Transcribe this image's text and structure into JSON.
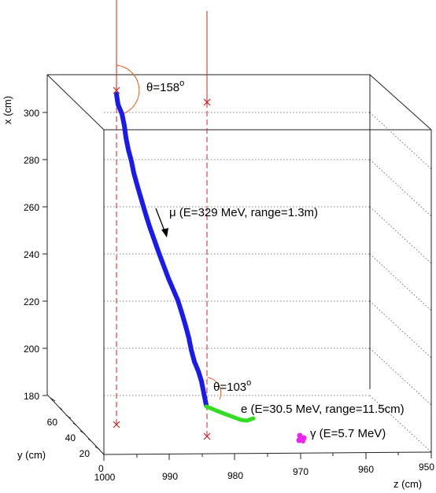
{
  "chart_data": {
    "type": "scatter",
    "axes": {
      "x": {
        "label": "x (cm)",
        "ticks": [
          "180",
          "200",
          "220",
          "240",
          "260",
          "280",
          "300"
        ]
      },
      "y": {
        "label": "y (cm)",
        "ticks": [
          "20",
          "40",
          "60"
        ]
      },
      "z": {
        "label": "z (cm)",
        "ticks": [
          "1000",
          "990",
          "980",
          "970",
          "960",
          "950"
        ]
      },
      "origin_label": "0"
    },
    "annotations": {
      "muon": "μ (E=329 MeV, range=1.3m)",
      "electron": "e (E=30.5 MeV, range=11.5cm)",
      "gamma": "γ (E=5.7 MeV)",
      "angle1_base": "θ=158",
      "angle1_sup": "o",
      "angle2_base": "θ=103",
      "angle2_sup": "o"
    },
    "series": [
      {
        "color": "#1a1aee"
      },
      {
        "color": "#33dd22"
      },
      {
        "color": "#ee22ee"
      }
    ],
    "colors": {
      "reference_line": "#cc2222",
      "frame": "#222222",
      "grid": "#555555",
      "angle_arc": "#e06020"
    }
  }
}
